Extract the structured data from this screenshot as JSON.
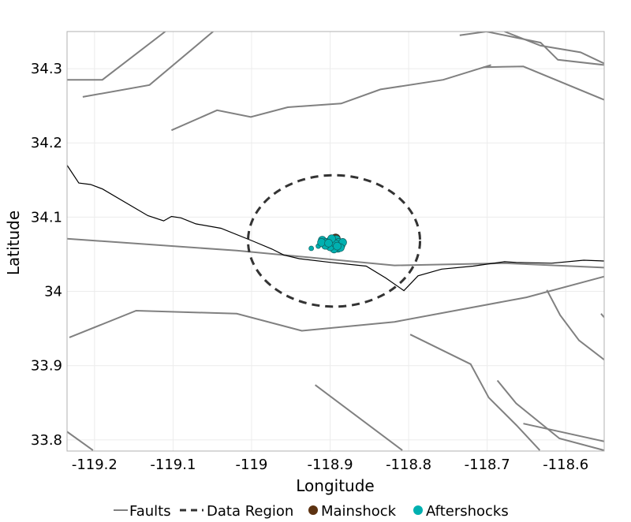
{
  "chart_data": {
    "type": "scatter",
    "xlabel": "Longitude",
    "ylabel": "Latitude",
    "xlim": [
      -119.235,
      -118.551
    ],
    "ylim": [
      33.785,
      34.35
    ],
    "xticks": [
      -119.2,
      -119.1,
      -119,
      -118.9,
      -118.8,
      -118.7,
      -118.6
    ],
    "xtick_labels": [
      "-119.2",
      "-119.1",
      "-119",
      "-118.9",
      "-118.8",
      "-118.7",
      "-118.6"
    ],
    "yticks": [
      33.8,
      33.9,
      34,
      34.1,
      34.2,
      34.3
    ],
    "ytick_labels": [
      "33.8",
      "33.9",
      "34",
      "34.1",
      "34.2",
      "34.3"
    ],
    "grid": true,
    "legend_position": "bottom",
    "legend": [
      "Faults",
      "Data Region",
      "Mainshock",
      "Aftershocks"
    ],
    "colors": {
      "faults": "#808080",
      "coast": "#000000",
      "region": "#333333",
      "mainshock": "#5c3211",
      "aftershocks": "#00b0b0"
    },
    "faults": [
      [
        [
          -119.235,
          34.285
        ],
        [
          -119.19,
          34.285
        ],
        [
          -119.11,
          34.35
        ]
      ],
      [
        [
          -119.215,
          34.262
        ],
        [
          -119.13,
          34.278
        ],
        [
          -119.049,
          34.35
        ]
      ],
      [
        [
          -119.102,
          34.217
        ],
        [
          -119.044,
          34.244
        ],
        [
          -119.001,
          34.235
        ],
        [
          -118.954,
          34.248
        ],
        [
          -118.886,
          34.253
        ],
        [
          -118.836,
          34.272
        ],
        [
          -118.756,
          34.285
        ],
        [
          -118.695,
          34.305
        ]
      ],
      [
        [
          -118.705,
          34.302
        ],
        [
          -118.654,
          34.303
        ],
        [
          -118.551,
          34.258
        ]
      ],
      [
        [
          -118.735,
          34.345
        ],
        [
          -118.701,
          34.35
        ],
        [
          -118.632,
          34.335
        ],
        [
          -118.61,
          34.312
        ],
        [
          -118.551,
          34.305
        ]
      ],
      [
        [
          -118.678,
          34.35
        ],
        [
          -118.632,
          34.331
        ],
        [
          -118.581,
          34.322
        ],
        [
          -118.551,
          34.307
        ]
      ],
      [
        [
          -119.235,
          34.071
        ],
        [
          -119.019,
          34.055
        ],
        [
          -118.818,
          34.035
        ],
        [
          -118.678,
          34.038
        ],
        [
          -118.551,
          34.032
        ]
      ],
      [
        [
          -119.232,
          33.938
        ],
        [
          -119.147,
          33.974
        ],
        [
          -119.019,
          33.97
        ],
        [
          -118.936,
          33.947
        ],
        [
          -118.818,
          33.959
        ],
        [
          -118.65,
          33.992
        ],
        [
          -118.551,
          34.02
        ]
      ],
      [
        [
          -118.798,
          33.942
        ],
        [
          -118.721,
          33.902
        ],
        [
          -118.698,
          33.857
        ],
        [
          -118.663,
          33.82
        ],
        [
          -118.633,
          33.786
        ]
      ],
      [
        [
          -118.919,
          33.874
        ],
        [
          -118.808,
          33.786
        ]
      ],
      [
        [
          -118.687,
          33.88
        ],
        [
          -118.663,
          33.849
        ],
        [
          -118.608,
          33.802
        ],
        [
          -118.551,
          33.786
        ]
      ],
      [
        [
          -118.654,
          33.822
        ],
        [
          -118.551,
          33.798
        ]
      ],
      [
        [
          -118.624,
          34.002
        ],
        [
          -118.607,
          33.968
        ],
        [
          -118.583,
          33.934
        ],
        [
          -118.551,
          33.908
        ]
      ],
      [
        [
          -119.235,
          33.811
        ],
        [
          -119.202,
          33.786
        ]
      ],
      [
        [
          -118.555,
          33.97
        ],
        [
          -118.551,
          33.965
        ]
      ]
    ],
    "coastline": [
      [
        -119.235,
        34.17
      ],
      [
        -119.22,
        34.146
      ],
      [
        -119.205,
        34.144
      ],
      [
        -119.19,
        34.138
      ],
      [
        -119.132,
        34.102
      ],
      [
        -119.112,
        34.095
      ],
      [
        -119.102,
        34.101
      ],
      [
        -119.09,
        34.099
      ],
      [
        -119.071,
        34.091
      ],
      [
        -119.039,
        34.085
      ],
      [
        -118.999,
        34.068
      ],
      [
        -118.974,
        34.057
      ],
      [
        -118.959,
        34.049
      ],
      [
        -118.939,
        34.044
      ],
      [
        -118.899,
        34.039
      ],
      [
        -118.854,
        34.034
      ],
      [
        -118.829,
        34.018
      ],
      [
        -118.806,
        34.001
      ],
      [
        -118.788,
        34.021
      ],
      [
        -118.758,
        34.03
      ],
      [
        -118.718,
        34.034
      ],
      [
        -118.678,
        34.04
      ],
      [
        -118.663,
        34.039
      ],
      [
        -118.618,
        34.038
      ],
      [
        -118.577,
        34.042
      ],
      [
        -118.551,
        34.041
      ]
    ],
    "data_region": {
      "center": [
        -118.895,
        34.068
      ],
      "radius_lon": 0.1095,
      "radius_lat": 0.0885
    },
    "mainshock": [
      -118.893,
      34.071
    ],
    "aftershocks": [
      [
        -118.924,
        34.058
      ],
      [
        -118.915,
        34.061
      ],
      [
        -118.91,
        34.069
      ],
      [
        -118.905,
        34.066
      ],
      [
        -118.9,
        34.068
      ],
      [
        -118.897,
        34.063
      ],
      [
        -118.892,
        34.07
      ],
      [
        -118.889,
        34.066
      ],
      [
        -118.886,
        34.062
      ],
      [
        -118.89,
        34.058
      ],
      [
        -118.895,
        34.057
      ],
      [
        -118.9,
        34.06
      ],
      [
        -118.906,
        34.062
      ],
      [
        -118.884,
        34.066
      ],
      [
        -118.893,
        34.064
      ],
      [
        -118.898,
        34.071
      ],
      [
        -118.887,
        34.059
      ],
      [
        -118.911,
        34.066
      ],
      [
        -118.902,
        34.065
      ],
      [
        -118.891,
        34.061
      ]
    ]
  }
}
